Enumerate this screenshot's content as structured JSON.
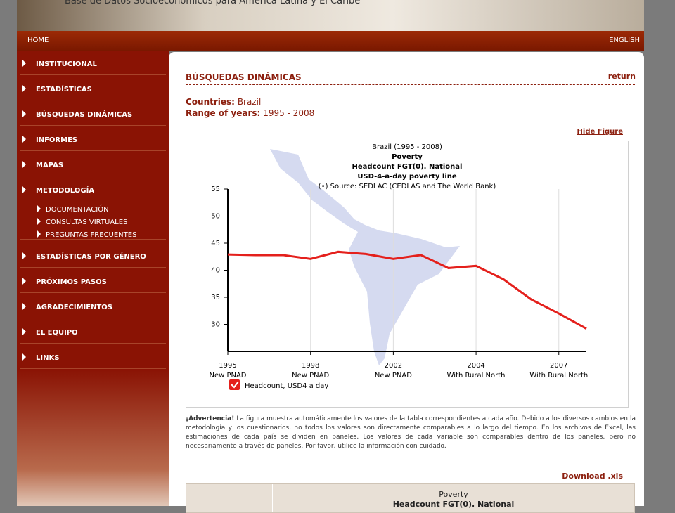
{
  "header": {
    "title": "Base de Datos Socioeconómicos para América Latina y El Caribe"
  },
  "nav": {
    "home": "HOME",
    "language": "ENGLISH"
  },
  "sidebar": {
    "items": [
      {
        "label": "INSTITUCIONAL"
      },
      {
        "label": "ESTADÍSTICAS"
      },
      {
        "label": "BÚSQUEDAS DINÁMICAS"
      },
      {
        "label": "INFORMES"
      },
      {
        "label": "MAPAS"
      },
      {
        "label": "METODOLOGÍA",
        "children": [
          "DOCUMENTACIÓN",
          "CONSULTAS VIRTUALES",
          "PREGUNTAS FRECUENTES"
        ]
      },
      {
        "label": "ESTADÍSTICAS POR GÉNERO"
      },
      {
        "label": "PRÓXIMOS PASOS"
      },
      {
        "label": "AGRADECIMIENTOS"
      },
      {
        "label": "EL EQUIPO"
      },
      {
        "label": "LINKS"
      }
    ]
  },
  "content": {
    "heading": "BÚSQUEDAS DINÁMICAS",
    "return": "return",
    "countries_label": "Countries:",
    "countries": "Brazil",
    "years_label": "Range of years:",
    "years": "1995 - 2008",
    "hide_figure": "Hide Figure",
    "warning_title": "¡Advertencia!",
    "warning_text": "La figura muestra automáticamente los valores de la tabla correspondientes a cada año. Debido a los diversos cambios en la metodología y los cuestionarios, no todos los valores son directamente comparables a lo largo del tiempo. En los archivos de Excel, las estimaciones de cada país se dividen en paneles. Los valores de cada variable son comparables dentro de los paneles, pero no necesariamente a través de paneles. Por favor, utilice la información con cuidado.",
    "download": "Download .xls",
    "table": {
      "header": [
        "Poverty",
        "Headcount FGT(0). National"
      ]
    }
  },
  "chart_data": {
    "type": "line",
    "title": [
      "Brazil (1995 - 2008)",
      "Poverty",
      "Headcount FGT(0). National",
      "USD-4-a-day poverty line"
    ],
    "subtitle": "(•) Source: SEDLAC (CEDLAS and The World Bank)",
    "categories": [
      "1995",
      null,
      null,
      "1998",
      null,
      null,
      "2002",
      null,
      null,
      "2004",
      null,
      null,
      "2007",
      null
    ],
    "category_sublabels": [
      "New PNAD",
      null,
      null,
      "New PNAD",
      null,
      null,
      "New PNAD",
      null,
      null,
      "With Rural North",
      null,
      null,
      "With Rural North",
      null
    ],
    "series": [
      {
        "name": "Headcount, USD4 a day",
        "color": "#e4201c",
        "values": [
          42.9,
          42.8,
          42.8,
          42.1,
          43.4,
          43.0,
          42.1,
          42.8,
          40.4,
          40.8,
          38.3,
          34.6,
          32.0,
          29.2
        ]
      }
    ],
    "ylim": [
      25,
      55
    ],
    "yticks": [
      30,
      35,
      40,
      45,
      50,
      55
    ],
    "grid": "x"
  }
}
